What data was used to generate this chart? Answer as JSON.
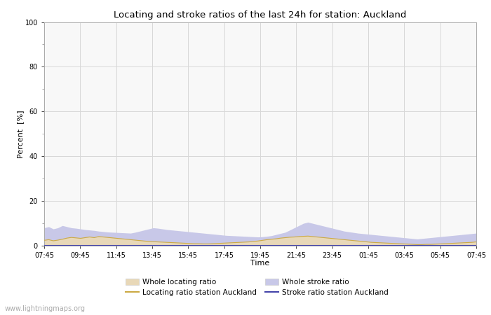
{
  "title": "Locating and stroke ratios of the last 24h for station: Auckland",
  "xlabel": "Time",
  "ylabel": "Percent  [%]",
  "ylim": [
    0,
    100
  ],
  "yticks_major": [
    0,
    20,
    40,
    60,
    80,
    100
  ],
  "yticks_minor": [
    10,
    30,
    50,
    70,
    90
  ],
  "x_labels": [
    "07:45",
    "09:45",
    "11:45",
    "13:45",
    "15:45",
    "17:45",
    "19:45",
    "21:45",
    "23:45",
    "01:45",
    "03:45",
    "05:45",
    "07:45"
  ],
  "background_color": "#ffffff",
  "plot_bg_color": "#f8f8f8",
  "grid_color": "#d8d8d8",
  "watermark": "www.lightningmaps.org",
  "whole_locating_fill_color": "#e8d8b8",
  "whole_stroke_fill_color": "#c8c8e8",
  "locating_station_color": "#ccaa44",
  "stroke_station_color": "#4444aa",
  "whole_locating_ratio": [
    2.5,
    2.8,
    2.3,
    2.6,
    3.0,
    3.5,
    3.8,
    3.6,
    3.4,
    3.7,
    4.0,
    3.7,
    4.2,
    4.0,
    3.8,
    3.6,
    3.4,
    3.2,
    3.0,
    2.8,
    2.6,
    2.4,
    2.2,
    2.0,
    1.9,
    1.8,
    1.7,
    1.6,
    1.5,
    1.4,
    1.3,
    1.2,
    1.1,
    1.0,
    1.0,
    0.9,
    0.9,
    1.0,
    1.1,
    1.2,
    1.3,
    1.4,
    1.5,
    1.6,
    1.7,
    1.8,
    2.0,
    2.2,
    2.5,
    2.8,
    3.0,
    3.2,
    3.5,
    3.7,
    3.9,
    4.0,
    4.2,
    4.3,
    4.4,
    4.2,
    4.0,
    3.8,
    3.6,
    3.4,
    3.2,
    3.0,
    2.8,
    2.6,
    2.4,
    2.2,
    2.0,
    1.8,
    1.6,
    1.5,
    1.4,
    1.3,
    1.2,
    1.1,
    1.0,
    0.9,
    0.8,
    0.7,
    0.6,
    0.6,
    0.7,
    0.7,
    0.8,
    0.9,
    1.0,
    1.1,
    1.2,
    1.3,
    1.4,
    1.5,
    1.6,
    1.8
  ],
  "whole_stroke_ratio": [
    8.0,
    8.5,
    7.5,
    8.0,
    9.0,
    8.5,
    8.0,
    7.8,
    7.5,
    7.2,
    7.0,
    6.8,
    6.5,
    6.3,
    6.1,
    6.0,
    5.9,
    5.8,
    5.7,
    5.6,
    6.0,
    6.5,
    7.0,
    7.5,
    8.0,
    7.8,
    7.5,
    7.2,
    7.0,
    6.8,
    6.6,
    6.4,
    6.2,
    6.0,
    5.8,
    5.6,
    5.4,
    5.2,
    5.0,
    4.8,
    4.6,
    4.5,
    4.4,
    4.3,
    4.2,
    4.1,
    4.0,
    3.9,
    4.0,
    4.2,
    4.5,
    5.0,
    5.5,
    6.0,
    7.0,
    8.0,
    9.0,
    10.0,
    10.5,
    10.0,
    9.5,
    9.0,
    8.5,
    8.0,
    7.5,
    7.0,
    6.5,
    6.2,
    5.9,
    5.6,
    5.4,
    5.2,
    5.0,
    4.8,
    4.6,
    4.4,
    4.2,
    4.0,
    3.8,
    3.6,
    3.4,
    3.2,
    3.0,
    3.2,
    3.4,
    3.6,
    3.8,
    4.0,
    4.2,
    4.4,
    4.6,
    4.8,
    5.0,
    5.2,
    5.4,
    5.6
  ],
  "locating_station_ratio": [
    2.4,
    2.7,
    2.2,
    2.5,
    2.9,
    3.4,
    3.7,
    3.5,
    3.3,
    3.6,
    3.9,
    3.6,
    4.1,
    3.9,
    3.7,
    3.5,
    3.3,
    3.1,
    2.9,
    2.7,
    2.5,
    2.3,
    2.1,
    1.9,
    1.8,
    1.7,
    1.6,
    1.5,
    1.4,
    1.3,
    1.2,
    1.1,
    1.0,
    0.9,
    0.9,
    0.8,
    0.8,
    0.9,
    1.0,
    1.1,
    1.2,
    1.3,
    1.4,
    1.5,
    1.6,
    1.7,
    1.9,
    2.1,
    2.4,
    2.7,
    2.9,
    3.1,
    3.4,
    3.6,
    3.8,
    3.9,
    4.1,
    4.2,
    4.3,
    4.1,
    3.9,
    3.7,
    3.5,
    3.3,
    3.1,
    2.9,
    2.7,
    2.5,
    2.3,
    2.1,
    1.9,
    1.7,
    1.5,
    1.4,
    1.3,
    1.2,
    1.1,
    1.0,
    0.9,
    0.8,
    0.7,
    0.6,
    0.5,
    0.5,
    0.6,
    0.6,
    0.7,
    0.8,
    0.9,
    1.0,
    1.1,
    1.2,
    1.3,
    1.4,
    1.5,
    1.7
  ],
  "stroke_station_ratio": [
    0.3,
    0.3,
    0.3,
    0.3,
    0.3,
    0.3,
    0.3,
    0.3,
    0.3,
    0.3,
    0.3,
    0.3,
    0.3,
    0.3,
    0.3,
    0.3,
    0.3,
    0.3,
    0.3,
    0.3,
    0.3,
    0.3,
    0.3,
    0.3,
    0.3,
    0.3,
    0.3,
    0.3,
    0.3,
    0.3,
    0.3,
    0.3,
    0.3,
    0.3,
    0.3,
    0.3,
    0.3,
    0.3,
    0.3,
    0.3,
    0.3,
    0.3,
    0.3,
    0.3,
    0.3,
    0.3,
    0.3,
    0.3,
    0.3,
    0.3,
    0.3,
    0.3,
    0.3,
    0.3,
    0.3,
    0.3,
    0.3,
    0.3,
    0.3,
    0.3,
    0.3,
    0.3,
    0.3,
    0.3,
    0.3,
    0.3,
    0.3,
    0.3,
    0.3,
    0.3,
    0.3,
    0.3,
    0.3,
    0.3,
    0.3,
    0.3,
    0.3,
    0.3,
    0.3,
    0.3,
    0.3,
    0.3,
    0.3,
    0.3,
    0.3,
    0.3,
    0.3,
    0.3,
    0.3,
    0.3,
    0.3,
    0.3,
    0.3,
    0.3,
    0.3,
    0.3
  ]
}
